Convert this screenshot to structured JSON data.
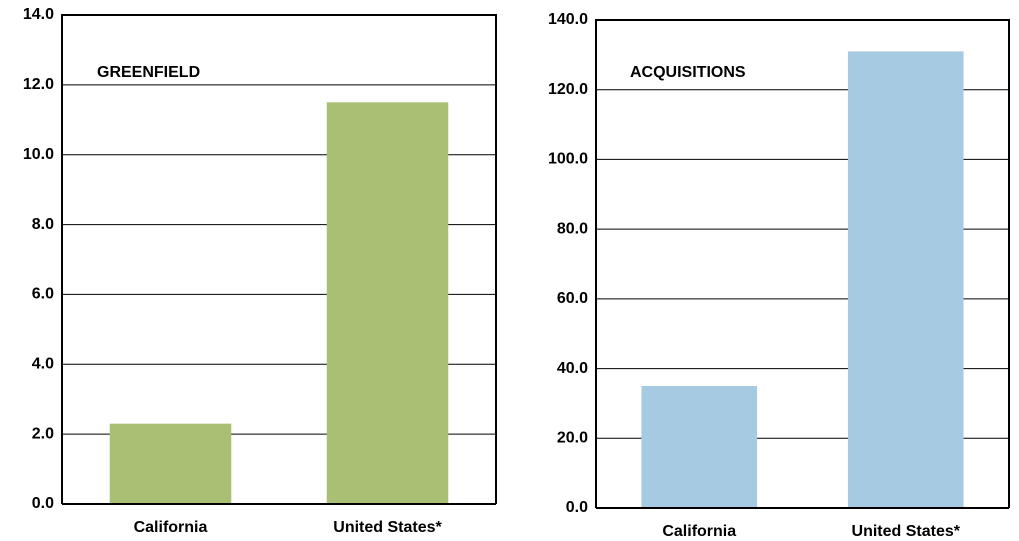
{
  "chart_data": [
    {
      "type": "bar",
      "title": "GREENFIELD",
      "categories": [
        "California",
        "United States*"
      ],
      "values": [
        2.3,
        11.5
      ],
      "color": "#a9c074",
      "ylim": [
        0,
        14
      ],
      "yticks": [
        {
          "value": 0,
          "label": "0.0"
        },
        {
          "value": 2,
          "label": "2.0"
        },
        {
          "value": 4,
          "label": "4.0"
        },
        {
          "value": 6,
          "label": "6.0"
        },
        {
          "value": 8,
          "label": "8.0"
        },
        {
          "value": 10,
          "label": "10.0"
        },
        {
          "value": 12,
          "label": "12.0"
        },
        {
          "value": 14,
          "label": "14.0"
        }
      ],
      "grid": true
    },
    {
      "type": "bar",
      "title": "ACQUISITIONS",
      "categories": [
        "California",
        "United States*"
      ],
      "values": [
        35,
        131
      ],
      "color": "#a7cae3",
      "ylim": [
        0,
        140
      ],
      "yticks": [
        {
          "value": 0,
          "label": "0.0"
        },
        {
          "value": 20,
          "label": "20.0"
        },
        {
          "value": 40,
          "label": "40.0"
        },
        {
          "value": 60,
          "label": "60.0"
        },
        {
          "value": 80,
          "label": "80.0"
        },
        {
          "value": 100,
          "label": "100.0"
        },
        {
          "value": 120,
          "label": "120.0"
        },
        {
          "value": 140,
          "label": "140.0"
        }
      ],
      "grid": true
    }
  ]
}
